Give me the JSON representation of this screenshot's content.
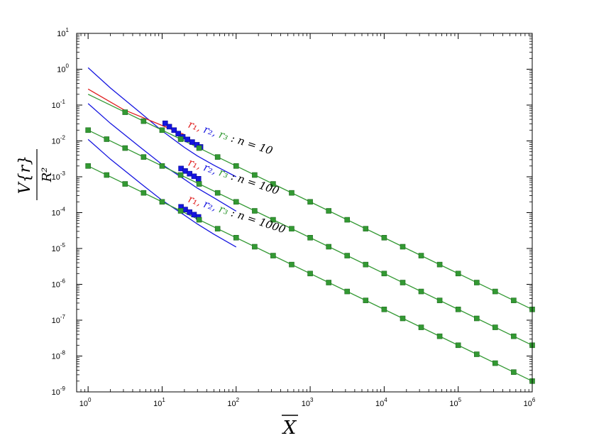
{
  "chart_data": {
    "type": "line",
    "x_scale": "log",
    "y_scale": "log",
    "xlim": [
      0.7,
      1000000
    ],
    "ylim": [
      1e-09,
      10
    ],
    "x_ticks": [
      {
        "value": 1,
        "base": "10",
        "exp": "0"
      },
      {
        "value": 10,
        "base": "10",
        "exp": "1"
      },
      {
        "value": 100,
        "base": "10",
        "exp": "2"
      },
      {
        "value": 1000,
        "base": "10",
        "exp": "3"
      },
      {
        "value": 10000,
        "base": "10",
        "exp": "4"
      },
      {
        "value": 100000,
        "base": "10",
        "exp": "5"
      },
      {
        "value": 1000000,
        "base": "10",
        "exp": "6"
      }
    ],
    "y_ticks": [
      {
        "value": 1e-09,
        "base": "10",
        "exp": "-9"
      },
      {
        "value": 1e-08,
        "base": "10",
        "exp": "-8"
      },
      {
        "value": 1e-07,
        "base": "10",
        "exp": "-7"
      },
      {
        "value": 1e-06,
        "base": "10",
        "exp": "-6"
      },
      {
        "value": 1e-05,
        "base": "10",
        "exp": "-5"
      },
      {
        "value": 0.0001,
        "base": "10",
        "exp": "-4"
      },
      {
        "value": 0.001,
        "base": "10",
        "exp": "-3"
      },
      {
        "value": 0.01,
        "base": "10",
        "exp": "-2"
      },
      {
        "value": 0.1,
        "base": "10",
        "exp": "-1"
      },
      {
        "value": 1,
        "base": "10",
        "exp": "0"
      },
      {
        "value": 10,
        "base": "10",
        "exp": "1"
      }
    ],
    "xlabel": "X",
    "ylabel": {
      "numerator": "V{r}",
      "denominator": "R²"
    },
    "colors": {
      "r1": "#e02020",
      "r2": "#1515e0",
      "r3": "#339933"
    },
    "groups": [
      {
        "n": 10,
        "note": {
          "r1": "r₁",
          "r2": "r₂",
          "r3": "r₃",
          "rest": ": n = 10",
          "x": 22,
          "y": 0.024
        },
        "r1_line": {
          "x": [
            1,
            3,
            10,
            20
          ],
          "y": [
            0.28,
            0.075,
            0.027,
            0.015
          ]
        },
        "r2_line": {
          "x": [
            1,
            2,
            5,
            10,
            20,
            30,
            50,
            100
          ],
          "y": [
            1.1,
            0.3,
            0.063,
            0.019,
            0.0066,
            0.0038,
            0.0021,
            0.001
          ]
        },
        "r3_line": {
          "x": [
            1,
            1000000
          ],
          "y": [
            0.2,
            2e-07
          ]
        },
        "r2_markers": {
          "x": [
            11,
            12.5,
            14.5,
            16.5,
            19,
            22,
            25.5,
            29.5,
            33
          ],
          "y": [
            0.031,
            0.025,
            0.02,
            0.016,
            0.013,
            0.011,
            0.0093,
            0.0078,
            0.0068
          ]
        },
        "r3_markers": {
          "x": [
            3.16,
            5.62,
            10,
            17.8,
            31.6,
            56.2,
            100,
            178,
            316,
            562,
            1000,
            1780,
            3160,
            5620,
            10000,
            17800,
            31600,
            56200,
            100000,
            178000,
            316000,
            562000,
            1000000
          ],
          "y": [
            0.0632,
            0.0356,
            0.02,
            0.0112,
            0.00632,
            0.00356,
            0.002,
            0.00112,
            0.000632,
            0.000356,
            0.0002,
            0.000112,
            6.32e-05,
            3.56e-05,
            2e-05,
            1.12e-05,
            6.32e-06,
            3.56e-06,
            2e-06,
            1.12e-06,
            6.32e-07,
            3.56e-07,
            2e-07
          ]
        }
      },
      {
        "n": 100,
        "note": {
          "r1": "r₁",
          "r2": "r₂",
          "r3": "r₃",
          "rest": ": n = 100",
          "x": 22,
          "y": 0.0021
        },
        "r2_line": {
          "x": [
            1,
            2,
            5,
            10,
            20,
            30,
            50,
            100
          ],
          "y": [
            0.11,
            0.031,
            0.0068,
            0.0022,
            0.00085,
            0.00048,
            0.00026,
            0.00011
          ]
        },
        "r3_line": {
          "x": [
            1,
            1000000
          ],
          "y": [
            0.02,
            2e-08
          ]
        },
        "r2_markers": {
          "x": [
            18,
            20.5,
            23.5,
            27,
            31
          ],
          "y": [
            0.0017,
            0.00145,
            0.00122,
            0.00103,
            0.00088
          ]
        },
        "r3_markers": {
          "x": [
            1,
            1.78,
            3.16,
            5.62,
            10,
            17.8,
            31.6,
            56.2,
            100,
            178,
            316,
            562,
            1000,
            1780,
            3160,
            5620,
            10000,
            17800,
            31600,
            56200,
            100000,
            178000,
            316000,
            562000,
            1000000
          ],
          "y": [
            0.02,
            0.0112,
            0.00632,
            0.00356,
            0.002,
            0.00112,
            0.000632,
            0.000356,
            0.0002,
            0.000112,
            6.32e-05,
            3.56e-05,
            2e-05,
            1.12e-05,
            6.32e-06,
            3.56e-06,
            2e-06,
            1.12e-06,
            6.32e-07,
            3.56e-07,
            2e-07,
            1.12e-07,
            6.32e-08,
            3.56e-08,
            2e-08
          ]
        }
      },
      {
        "n": 1000,
        "note": {
          "r1": "r₁",
          "r2": "r₂",
          "r3": "r₃",
          "rest": ": n = 1000",
          "x": 22,
          "y": 0.0002
        },
        "r2_line": {
          "x": [
            1,
            2,
            5,
            10,
            20,
            30,
            50,
            100
          ],
          "y": [
            0.011,
            0.0031,
            0.00068,
            0.00022,
            8.5e-05,
            4.8e-05,
            2.5e-05,
            1.1e-05
          ]
        },
        "r3_line": {
          "x": [
            1,
            1000000
          ],
          "y": [
            0.002,
            2e-09
          ]
        },
        "r2_markers": {
          "x": [
            18,
            20.5,
            23.5,
            27,
            31
          ],
          "y": [
            0.000145,
            0.000122,
            0.000103,
            8.8e-05,
            7.6e-05
          ]
        },
        "r3_markers": {
          "x": [
            1,
            1.78,
            3.16,
            5.62,
            10,
            17.8,
            31.6,
            56.2,
            100,
            178,
            316,
            562,
            1000,
            1780,
            3160,
            5620,
            10000,
            17800,
            31600,
            56200,
            100000,
            178000,
            316000,
            562000,
            1000000
          ],
          "y": [
            0.002,
            0.00112,
            0.000632,
            0.000356,
            0.0002,
            0.000112,
            6.32e-05,
            3.56e-05,
            2e-05,
            1.12e-05,
            6.32e-06,
            3.56e-06,
            2e-06,
            1.12e-06,
            6.32e-07,
            3.56e-07,
            2e-07,
            1.12e-07,
            6.32e-08,
            3.56e-08,
            2e-08,
            1.12e-08,
            6.32e-09,
            3.56e-09,
            2e-09
          ]
        }
      }
    ]
  }
}
